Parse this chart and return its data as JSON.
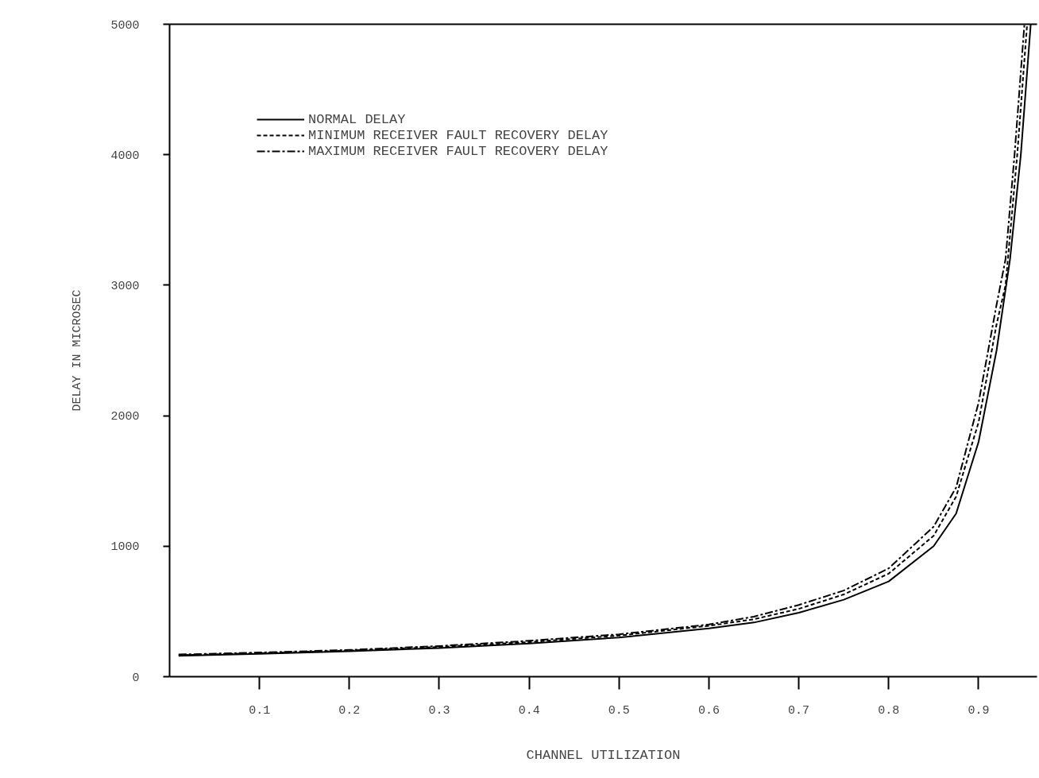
{
  "chart_data": {
    "type": "line",
    "xlabel": "CHANNEL UTILIZATION",
    "ylabel": "DELAY IN MICROSEC",
    "xlim": [
      0,
      0.965
    ],
    "ylim": [
      0,
      5000
    ],
    "xticks": [
      0.1,
      0.2,
      0.3,
      0.4,
      0.5,
      0.6,
      0.7,
      0.8,
      0.9
    ],
    "yticks": [
      0,
      1000,
      2000,
      3000,
      4000,
      5000
    ],
    "grid": false,
    "legend": "top left",
    "series": [
      {
        "name": "NORMAL DELAY",
        "color": "#000000",
        "line_style": "solid",
        "x": [
          0.01,
          0.1,
          0.2,
          0.3,
          0.4,
          0.5,
          0.6,
          0.65,
          0.7,
          0.75,
          0.8,
          0.85,
          0.875,
          0.9,
          0.92,
          0.935,
          0.947,
          0.958
        ],
        "values": [
          160,
          175,
          195,
          220,
          255,
          300,
          370,
          415,
          490,
          590,
          730,
          1000,
          1250,
          1800,
          2500,
          3200,
          4000,
          5000
        ]
      },
      {
        "name": "MINIMUM RECEIVER FAULT RECOVERY DELAY",
        "color": "#000000",
        "line_style": "dashed",
        "x": [
          0.01,
          0.1,
          0.2,
          0.3,
          0.4,
          0.5,
          0.6,
          0.65,
          0.7,
          0.75,
          0.8,
          0.85,
          0.875,
          0.9,
          0.92,
          0.93,
          0.943,
          0.954
        ],
        "values": [
          165,
          180,
          200,
          228,
          265,
          315,
          390,
          440,
          520,
          630,
          790,
          1080,
          1380,
          1950,
          2700,
          3000,
          4000,
          5000
        ]
      },
      {
        "name": "MAXIMUM RECEIVER FAULT RECOVERY DELAY",
        "color": "#000000",
        "line_style": "dashdot",
        "x": [
          0.01,
          0.1,
          0.2,
          0.3,
          0.4,
          0.5,
          0.6,
          0.65,
          0.7,
          0.75,
          0.8,
          0.85,
          0.875,
          0.9,
          0.92,
          0.93,
          0.94,
          0.951
        ],
        "values": [
          170,
          185,
          205,
          235,
          275,
          325,
          400,
          460,
          550,
          660,
          830,
          1150,
          1450,
          2100,
          2850,
          3200,
          4000,
          5000
        ]
      }
    ]
  }
}
